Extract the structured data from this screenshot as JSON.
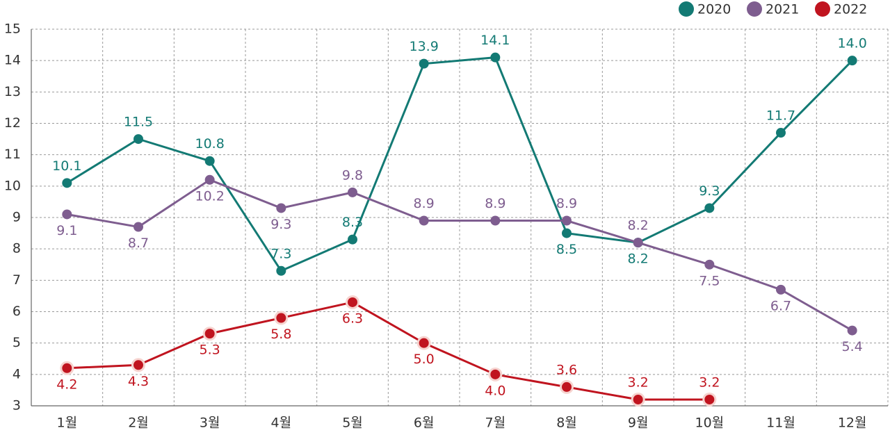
{
  "chart_data": {
    "type": "line",
    "categories": [
      "1월",
      "2월",
      "3월",
      "4월",
      "5월",
      "6월",
      "7월",
      "8월",
      "9월",
      "10월",
      "11월",
      "12월"
    ],
    "series": [
      {
        "name": "2020",
        "color": "#137a74",
        "values": [
          10.1,
          11.5,
          10.8,
          7.3,
          8.3,
          13.9,
          14.1,
          8.5,
          8.2,
          9.3,
          11.7,
          14.0
        ],
        "value_labels": [
          "10.1",
          "11.5",
          "10.8",
          "7.3",
          "8.3",
          "13.9",
          "14.1",
          "8.5",
          "8.2",
          "9.3",
          "11.7",
          "14.0"
        ]
      },
      {
        "name": "2021",
        "color": "#7e5d8f",
        "values": [
          9.1,
          8.7,
          10.2,
          9.3,
          9.8,
          8.9,
          8.9,
          8.9,
          8.2,
          7.5,
          6.7,
          5.4
        ],
        "value_labels": [
          "9.1",
          "8.7",
          "10.2",
          "9.3",
          "9.8",
          "8.9",
          "8.9",
          "8.9",
          "8.2",
          "7.5",
          "6.7",
          "5.4"
        ]
      },
      {
        "name": "2022",
        "color": "#c0141f",
        "values": [
          4.2,
          4.3,
          5.3,
          5.8,
          6.3,
          5.0,
          4.0,
          3.6,
          3.2,
          3.2,
          null,
          null
        ],
        "value_labels": [
          "4.2",
          "4.3",
          "5.3",
          "5.8",
          "6.3",
          "5.0",
          "4.0",
          "3.6",
          "3.2",
          "3.2",
          null,
          null
        ]
      }
    ],
    "ylim": [
      3,
      15
    ],
    "yticks": [
      3,
      4,
      5,
      6,
      7,
      8,
      9,
      10,
      11,
      12,
      13,
      14,
      15
    ],
    "grid": true,
    "legend": "top-right"
  }
}
